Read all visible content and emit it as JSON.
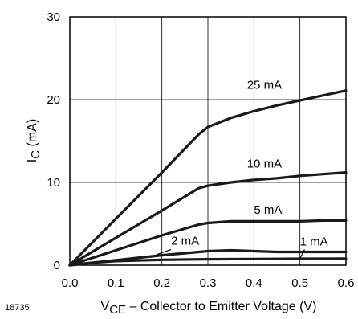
{
  "figure_id": "18735",
  "chart_data": {
    "type": "line",
    "xlabel": "V_CE – Collector to Emitter Voltage (V)",
    "xlabel_main": "V",
    "xlabel_sub": "CE",
    "xlabel_rest": " – Collector to Emitter Voltage (V)",
    "ylabel": "I_C (mA)",
    "ylabel_main": "I",
    "ylabel_sub": "C",
    "ylabel_rest": " (mA)",
    "xlim": [
      0,
      0.6
    ],
    "ylim": [
      0,
      30
    ],
    "x_ticks": [
      "0.0",
      "0.1",
      "0.2",
      "0.3",
      "0.4",
      "0.5",
      "0.6"
    ],
    "y_ticks": [
      "0",
      "10",
      "20",
      "30"
    ],
    "grid": true,
    "line_color": "#1a1a1a",
    "series": [
      {
        "name": "25 mA",
        "x": [
          0,
          0.1,
          0.2,
          0.28,
          0.3,
          0.35,
          0.4,
          0.45,
          0.5,
          0.55,
          0.6
        ],
        "y": [
          0,
          5.6,
          11.2,
          15.8,
          16.7,
          17.8,
          18.6,
          19.3,
          19.9,
          20.5,
          21.1
        ]
      },
      {
        "name": "10 mA",
        "x": [
          0,
          0.1,
          0.2,
          0.28,
          0.3,
          0.35,
          0.4,
          0.45,
          0.5,
          0.55,
          0.6
        ],
        "y": [
          0,
          3.3,
          6.6,
          9.3,
          9.6,
          10.0,
          10.3,
          10.5,
          10.8,
          11.0,
          11.2
        ]
      },
      {
        "name": "5 mA",
        "x": [
          0,
          0.1,
          0.2,
          0.28,
          0.3,
          0.35,
          0.4,
          0.45,
          0.5,
          0.55,
          0.6
        ],
        "y": [
          0,
          1.8,
          3.6,
          4.9,
          5.1,
          5.3,
          5.3,
          5.3,
          5.3,
          5.4,
          5.4
        ]
      },
      {
        "name": "2 mA",
        "x": [
          0,
          0.1,
          0.2,
          0.3,
          0.35,
          0.4,
          0.45,
          0.5,
          0.55,
          0.6
        ],
        "y": [
          0,
          0.6,
          1.2,
          1.7,
          1.8,
          1.7,
          1.6,
          1.6,
          1.6,
          1.6
        ]
      },
      {
        "name": "1 mA",
        "x": [
          0,
          0.05,
          0.1,
          0.2,
          0.3,
          0.4,
          0.5,
          0.6
        ],
        "y": [
          0,
          0.3,
          0.5,
          0.65,
          0.72,
          0.75,
          0.78,
          0.8
        ]
      }
    ],
    "labels": [
      {
        "text": "25 mA",
        "x": 0.385,
        "y": 21.3
      },
      {
        "text": "10 mA",
        "x": 0.385,
        "y": 11.8
      },
      {
        "text": "5 mA",
        "x": 0.4,
        "y": 6.2
      },
      {
        "text": "2 mA",
        "x": 0.22,
        "y": 2.5
      },
      {
        "text": "1 mA",
        "x": 0.5,
        "y": 2.4
      }
    ],
    "label_pointers": [
      {
        "for": "2 mA",
        "x1": 0.22,
        "y1": 1.9,
        "x2": 0.19,
        "y2": 1.3
      },
      {
        "for": "1 mA",
        "x1": 0.51,
        "y1": 1.9,
        "x2": 0.5,
        "y2": 0.8
      }
    ]
  }
}
